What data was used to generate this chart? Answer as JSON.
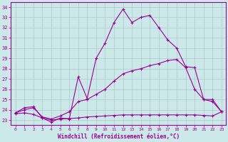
{
  "xlabel": "Windchill (Refroidissement éolien,°C)",
  "xlim": [
    -0.5,
    23.5
  ],
  "ylim": [
    22.5,
    34.5
  ],
  "yticks": [
    23,
    24,
    25,
    26,
    27,
    28,
    29,
    30,
    31,
    32,
    33,
    34
  ],
  "xticks": [
    0,
    1,
    2,
    3,
    4,
    5,
    6,
    7,
    8,
    9,
    10,
    11,
    12,
    13,
    14,
    15,
    16,
    17,
    18,
    19,
    20,
    21,
    22,
    23
  ],
  "bg_color": "#cce8e8",
  "line_color": "#990099",
  "grid_color": "#aacccc",
  "lines": [
    {
      "x": [
        0,
        1,
        2,
        3,
        4,
        5,
        6,
        7,
        8,
        9,
        10,
        11,
        12,
        13,
        14,
        15,
        16,
        17,
        18,
        19,
        20,
        21,
        22,
        23
      ],
      "y": [
        23.7,
        24.2,
        24.3,
        23.2,
        22.8,
        23.2,
        23.1,
        27.2,
        25.1,
        29.0,
        30.5,
        32.5,
        33.8,
        32.5,
        33.0,
        33.2,
        32.0,
        30.8,
        30.0,
        28.2,
        28.1,
        25.0,
        25.0,
        23.8
      ]
    },
    {
      "x": [
        0,
        1,
        2,
        3,
        4,
        5,
        6,
        7,
        8,
        9,
        10,
        11,
        12,
        13,
        14,
        15,
        16,
        17,
        18,
        19,
        20,
        21,
        22,
        23
      ],
      "y": [
        23.7,
        24.0,
        24.2,
        23.3,
        23.1,
        23.4,
        23.8,
        24.8,
        25.0,
        25.5,
        26.0,
        26.8,
        27.5,
        27.8,
        28.0,
        28.3,
        28.5,
        28.8,
        28.9,
        28.1,
        26.0,
        25.0,
        24.8,
        23.8
      ]
    },
    {
      "x": [
        0,
        1,
        2,
        3,
        4,
        5,
        6,
        7,
        8,
        9,
        10,
        11,
        12,
        13,
        14,
        15,
        16,
        17,
        18,
        19,
        20,
        21,
        22,
        23
      ],
      "y": [
        23.6,
        23.7,
        23.55,
        23.2,
        23.0,
        23.1,
        23.15,
        23.2,
        23.3,
        23.35,
        23.4,
        23.45,
        23.5,
        23.5,
        23.5,
        23.5,
        23.5,
        23.5,
        23.5,
        23.5,
        23.5,
        23.45,
        23.4,
        23.8
      ]
    }
  ]
}
